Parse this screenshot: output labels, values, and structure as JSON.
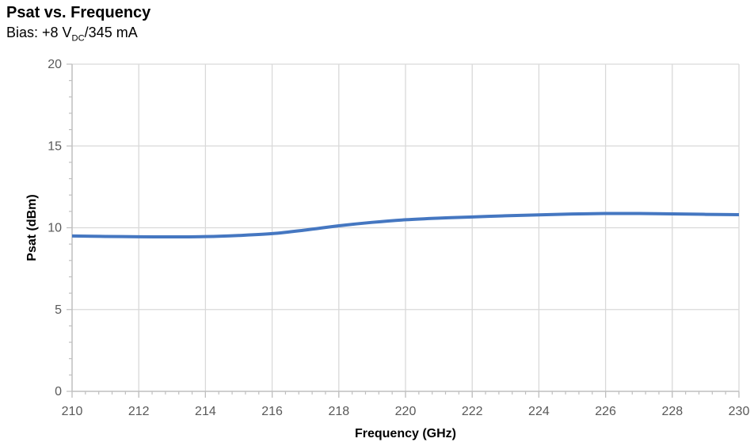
{
  "page": {
    "title": "Psat vs. Frequency",
    "subtitle_prefix": "Bias: +8 V",
    "subtitle_sub": "DC",
    "subtitle_suffix": "/345 mA"
  },
  "chart_data": {
    "type": "line",
    "title": "Psat vs. Frequency",
    "subtitle": "Bias: +8 V_DC/345 mA",
    "xlabel": "Frequency (GHz)",
    "ylabel": "Psat (dBm)",
    "xlim": [
      210,
      230
    ],
    "ylim": [
      0,
      20
    ],
    "x_major_ticks": [
      210,
      212,
      214,
      216,
      218,
      220,
      222,
      224,
      226,
      228,
      230
    ],
    "x_minor_step": 0.4,
    "y_major_ticks": [
      0,
      5,
      10,
      15,
      20
    ],
    "y_minor_step": 1,
    "grid": true,
    "legend": "none",
    "series": [
      {
        "name": "Psat",
        "x": [
          210,
          211,
          212,
          213,
          214,
          215,
          216,
          217,
          218,
          219,
          220,
          221,
          222,
          223,
          224,
          225,
          226,
          227,
          228,
          229,
          230
        ],
        "y": [
          9.5,
          9.47,
          9.45,
          9.44,
          9.46,
          9.53,
          9.64,
          9.86,
          10.12,
          10.33,
          10.49,
          10.59,
          10.66,
          10.73,
          10.79,
          10.84,
          10.87,
          10.87,
          10.85,
          10.82,
          10.8
        ]
      }
    ],
    "colors": {
      "line": "#4577C1",
      "gridline": "#D9D9D9",
      "axis_line": "#BFBFBF",
      "tick_mark": "#BFBFBF",
      "tick_text": "#595959",
      "axis_title_text": "#000000",
      "title_text": "#000000"
    }
  }
}
